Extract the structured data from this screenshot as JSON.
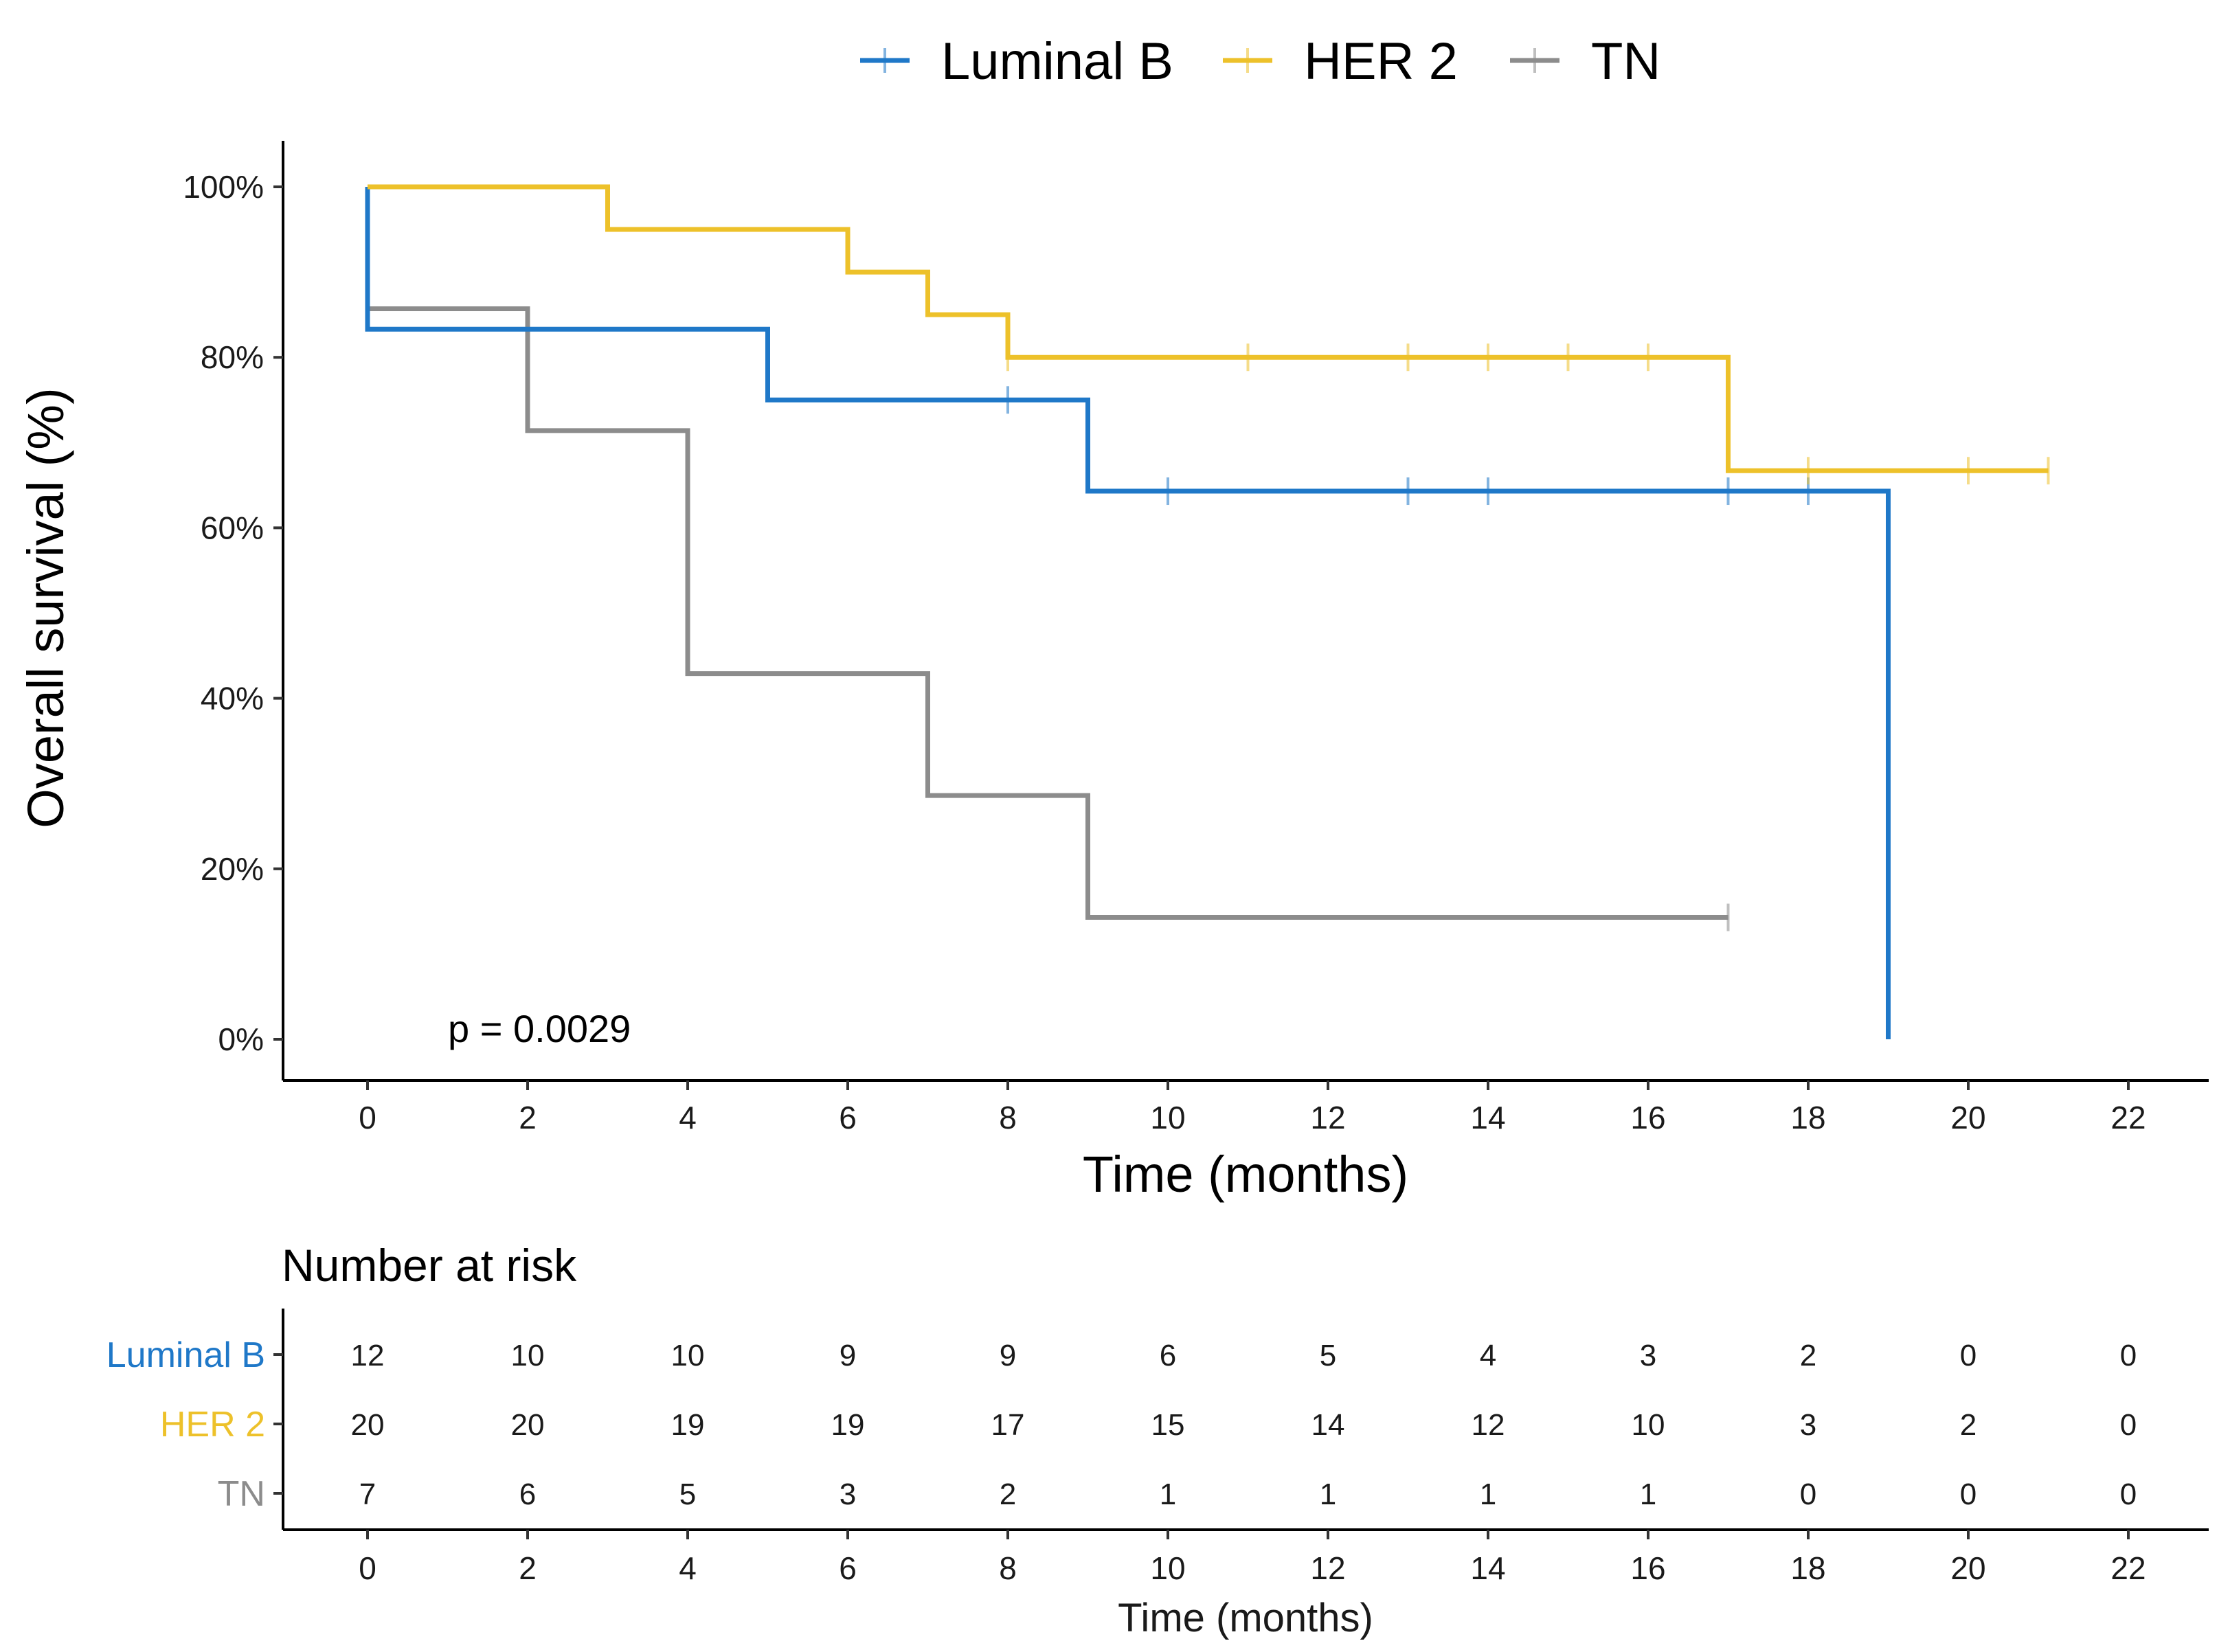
{
  "chart_data": {
    "type": "line",
    "subtype": "kaplan-meier",
    "xlabel": "Time (months)",
    "ylabel": "Overall survival (%)",
    "xlim": [
      -1,
      23
    ],
    "ylim": [
      0,
      100
    ],
    "x_ticks": [
      0,
      2,
      4,
      6,
      8,
      10,
      12,
      14,
      16,
      18,
      20,
      22
    ],
    "y_ticks": [
      0,
      20,
      40,
      60,
      80,
      100
    ],
    "y_tick_labels": [
      "0%",
      "20%",
      "40%",
      "60%",
      "80%",
      "100%"
    ],
    "legend_position": "top",
    "grid": false,
    "annotation": "p = 0.0029",
    "series": [
      {
        "name": "Luminal B",
        "color": "#1F78C8",
        "steps": [
          [
            0,
            83.3
          ],
          [
            5,
            75.0
          ],
          [
            9,
            64.3
          ],
          [
            19,
            0
          ]
        ],
        "end": 19,
        "censor_times": [
          8,
          10,
          13,
          14,
          17,
          18
        ]
      },
      {
        "name": "HER 2",
        "color": "#EDC12A",
        "steps": [
          [
            0,
            100
          ],
          [
            3,
            95.0
          ],
          [
            6,
            90.0
          ],
          [
            7,
            85.0
          ],
          [
            8,
            80.0
          ],
          [
            17,
            66.7
          ]
        ],
        "end": 21,
        "censor_times": [
          8,
          11,
          13,
          14,
          15,
          16,
          18,
          20,
          21
        ]
      },
      {
        "name": "TN",
        "color": "#8C8C8C",
        "steps": [
          [
            0,
            85.7
          ],
          [
            2,
            71.4
          ],
          [
            4,
            42.9
          ],
          [
            7,
            28.6
          ],
          [
            9,
            14.3
          ]
        ],
        "end": 17,
        "censor_times": [
          17
        ]
      }
    ],
    "risk_table": {
      "title": "Number at risk",
      "xlabel": "Time (months)",
      "times": [
        0,
        2,
        4,
        6,
        8,
        10,
        12,
        14,
        16,
        18,
        20,
        22
      ],
      "rows": [
        {
          "name": "Luminal B",
          "color": "#1F78C8",
          "values": [
            12,
            10,
            10,
            9,
            9,
            6,
            5,
            4,
            3,
            2,
            0,
            0
          ]
        },
        {
          "name": "HER 2",
          "color": "#EDC12A",
          "values": [
            20,
            20,
            19,
            19,
            17,
            15,
            14,
            12,
            10,
            3,
            2,
            0
          ]
        },
        {
          "name": "TN",
          "color": "#8C8C8C",
          "values": [
            7,
            6,
            5,
            3,
            2,
            1,
            1,
            1,
            1,
            0,
            0,
            0
          ]
        }
      ]
    }
  }
}
